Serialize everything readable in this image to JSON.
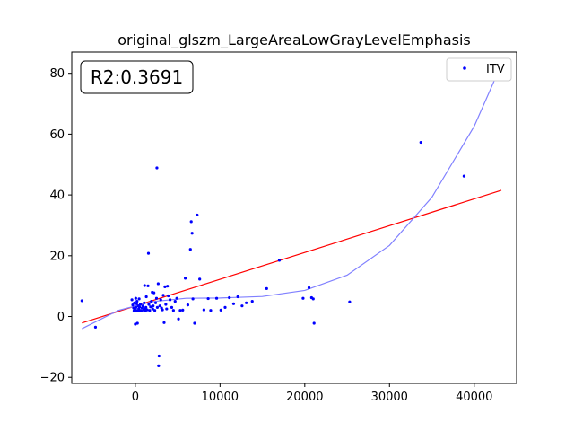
{
  "chart_data": {
    "type": "scatter",
    "title": "original_glszm_LargeAreaLowGrayLevelEmphasis",
    "xlabel": "",
    "ylabel": "",
    "xlim": [
      -7500,
      45000
    ],
    "ylim": [
      -22,
      87
    ],
    "xticks": [
      0,
      10000,
      20000,
      30000,
      40000
    ],
    "yticks": [
      -20,
      0,
      20,
      40,
      60,
      80
    ],
    "annotation": "R2:0.3691",
    "legend": {
      "label": "ITV",
      "position": "top-right"
    },
    "grid": false,
    "series": [
      {
        "name": "ITV",
        "color": "#0000ff",
        "points": [
          [
            -6300,
            5.2
          ],
          [
            -4700,
            -3.5
          ],
          [
            -400,
            5.5
          ],
          [
            -300,
            3.8
          ],
          [
            -200,
            2.8
          ],
          [
            -150,
            1.9
          ],
          [
            -100,
            4.5
          ],
          [
            -50,
            2.2
          ],
          [
            0,
            -2.5
          ],
          [
            50,
            6.0
          ],
          [
            80,
            3.0
          ],
          [
            100,
            2.0
          ],
          [
            150,
            4.2
          ],
          [
            200,
            5.0
          ],
          [
            250,
            -2.2
          ],
          [
            300,
            1.8
          ],
          [
            350,
            3.5
          ],
          [
            400,
            2.5
          ],
          [
            450,
            5.8
          ],
          [
            500,
            3.1
          ],
          [
            550,
            2.0
          ],
          [
            600,
            4.0
          ],
          [
            700,
            1.9
          ],
          [
            800,
            2.8
          ],
          [
            900,
            3.5
          ],
          [
            1000,
            2.1
          ],
          [
            1050,
            4.5
          ],
          [
            1100,
            10.2
          ],
          [
            1150,
            2.5
          ],
          [
            1200,
            1.8
          ],
          [
            1250,
            3.0
          ],
          [
            1300,
            6.5
          ],
          [
            1400,
            2.2
          ],
          [
            1500,
            10.1
          ],
          [
            1550,
            20.8
          ],
          [
            1600,
            4.0
          ],
          [
            1700,
            2.0
          ],
          [
            1800,
            3.2
          ],
          [
            1900,
            5.0
          ],
          [
            2000,
            8.0
          ],
          [
            2050,
            2.5
          ],
          [
            2100,
            3.5
          ],
          [
            2200,
            7.8
          ],
          [
            2300,
            2.0
          ],
          [
            2400,
            4.5
          ],
          [
            2500,
            6.0
          ],
          [
            2550,
            48.9
          ],
          [
            2600,
            3.0
          ],
          [
            2700,
            10.8
          ],
          [
            2750,
            -16.2
          ],
          [
            2800,
            -13.0
          ],
          [
            2900,
            3.5
          ],
          [
            3000,
            5.5
          ],
          [
            3100,
            2.8
          ],
          [
            3200,
            2.2
          ],
          [
            3300,
            7.0
          ],
          [
            3400,
            -2.0
          ],
          [
            3500,
            9.8
          ],
          [
            3600,
            4.0
          ],
          [
            3700,
            2.5
          ],
          [
            3800,
            10.0
          ],
          [
            3900,
            6.8
          ],
          [
            4100,
            5.5
          ],
          [
            4300,
            3.0
          ],
          [
            4500,
            2.0
          ],
          [
            4700,
            5.0
          ],
          [
            4900,
            6.0
          ],
          [
            5100,
            -0.8
          ],
          [
            5300,
            2.0
          ],
          [
            5600,
            2.1
          ],
          [
            5900,
            12.6
          ],
          [
            6200,
            3.8
          ],
          [
            6500,
            22.1
          ],
          [
            6600,
            31.2
          ],
          [
            6700,
            27.4
          ],
          [
            6800,
            5.8
          ],
          [
            7000,
            -2.2
          ],
          [
            7300,
            33.4
          ],
          [
            7600,
            12.3
          ],
          [
            8100,
            2.2
          ],
          [
            8600,
            5.9
          ],
          [
            8900,
            2.0
          ],
          [
            9600,
            6.0
          ],
          [
            10100,
            2.1
          ],
          [
            10600,
            3.0
          ],
          [
            11100,
            6.2
          ],
          [
            11600,
            4.2
          ],
          [
            12100,
            6.5
          ],
          [
            12600,
            3.5
          ],
          [
            13100,
            4.5
          ],
          [
            13800,
            5.0
          ],
          [
            15500,
            9.2
          ],
          [
            17000,
            18.5
          ],
          [
            19800,
            6.0
          ],
          [
            20500,
            9.5
          ],
          [
            20800,
            6.2
          ],
          [
            21000,
            5.8
          ],
          [
            21100,
            -2.2
          ],
          [
            25300,
            4.8
          ],
          [
            33700,
            57.3
          ],
          [
            38800,
            46.2
          ],
          [
            42700,
            83.0
          ]
        ]
      }
    ],
    "fits": [
      {
        "kind": "linear",
        "color": "#ff0000",
        "x_range": [
          -6300,
          43200
        ],
        "intercept": 3.44,
        "slope": 0.000882
      },
      {
        "kind": "polynomial-cubic",
        "color": "#8080ff",
        "x_range": [
          -6300,
          43000
        ],
        "points": [
          [
            -6300,
            -4.0
          ],
          [
            -2000,
            2.0
          ],
          [
            2000,
            4.9
          ],
          [
            6000,
            6.0
          ],
          [
            10000,
            6.1
          ],
          [
            15000,
            6.6
          ],
          [
            20000,
            8.6
          ],
          [
            25000,
            13.6
          ],
          [
            30000,
            23.4
          ],
          [
            35000,
            39.2
          ],
          [
            40000,
            62.6
          ],
          [
            43000,
            81.6
          ]
        ]
      }
    ]
  }
}
